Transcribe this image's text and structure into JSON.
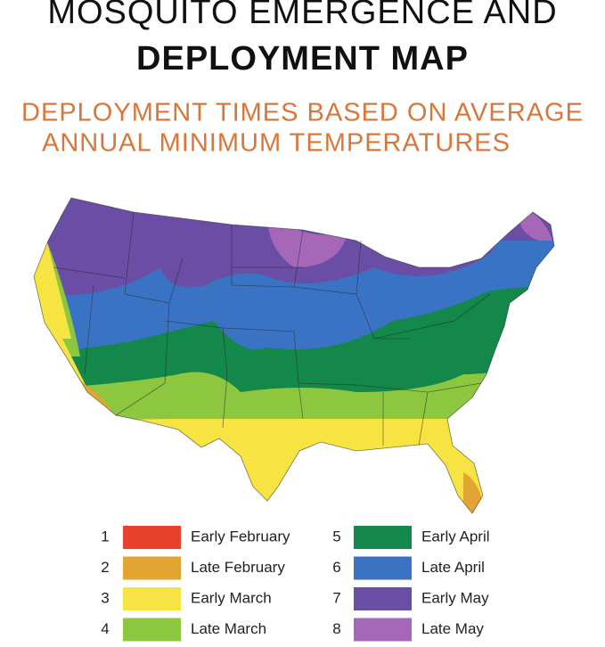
{
  "header": {
    "title_line_1": "MOSQUITO EMERGENCE AND",
    "title_line_2": "DEPLOYMENT MAP",
    "subtitle_line_1": "DEPLOYMENT TIMES BASED ON AVERAGE",
    "subtitle_line_2": "ANNUAL MINIMUM TEMPERATURES"
  },
  "legend": [
    {
      "number": 1,
      "label": "Early February",
      "color": "#e8432a"
    },
    {
      "number": 2,
      "label": "Late February",
      "color": "#e3a531"
    },
    {
      "number": 3,
      "label": "Early March",
      "color": "#f7e442"
    },
    {
      "number": 4,
      "label": "Late March",
      "color": "#8dc63f"
    },
    {
      "number": 5,
      "label": "Early April",
      "color": "#13884a"
    },
    {
      "number": 6,
      "label": "Late April",
      "color": "#3b73c4"
    },
    {
      "number": 7,
      "label": "Early May",
      "color": "#6a4ea5"
    },
    {
      "number": 8,
      "label": "Late May",
      "color": "#a667b8"
    }
  ]
}
